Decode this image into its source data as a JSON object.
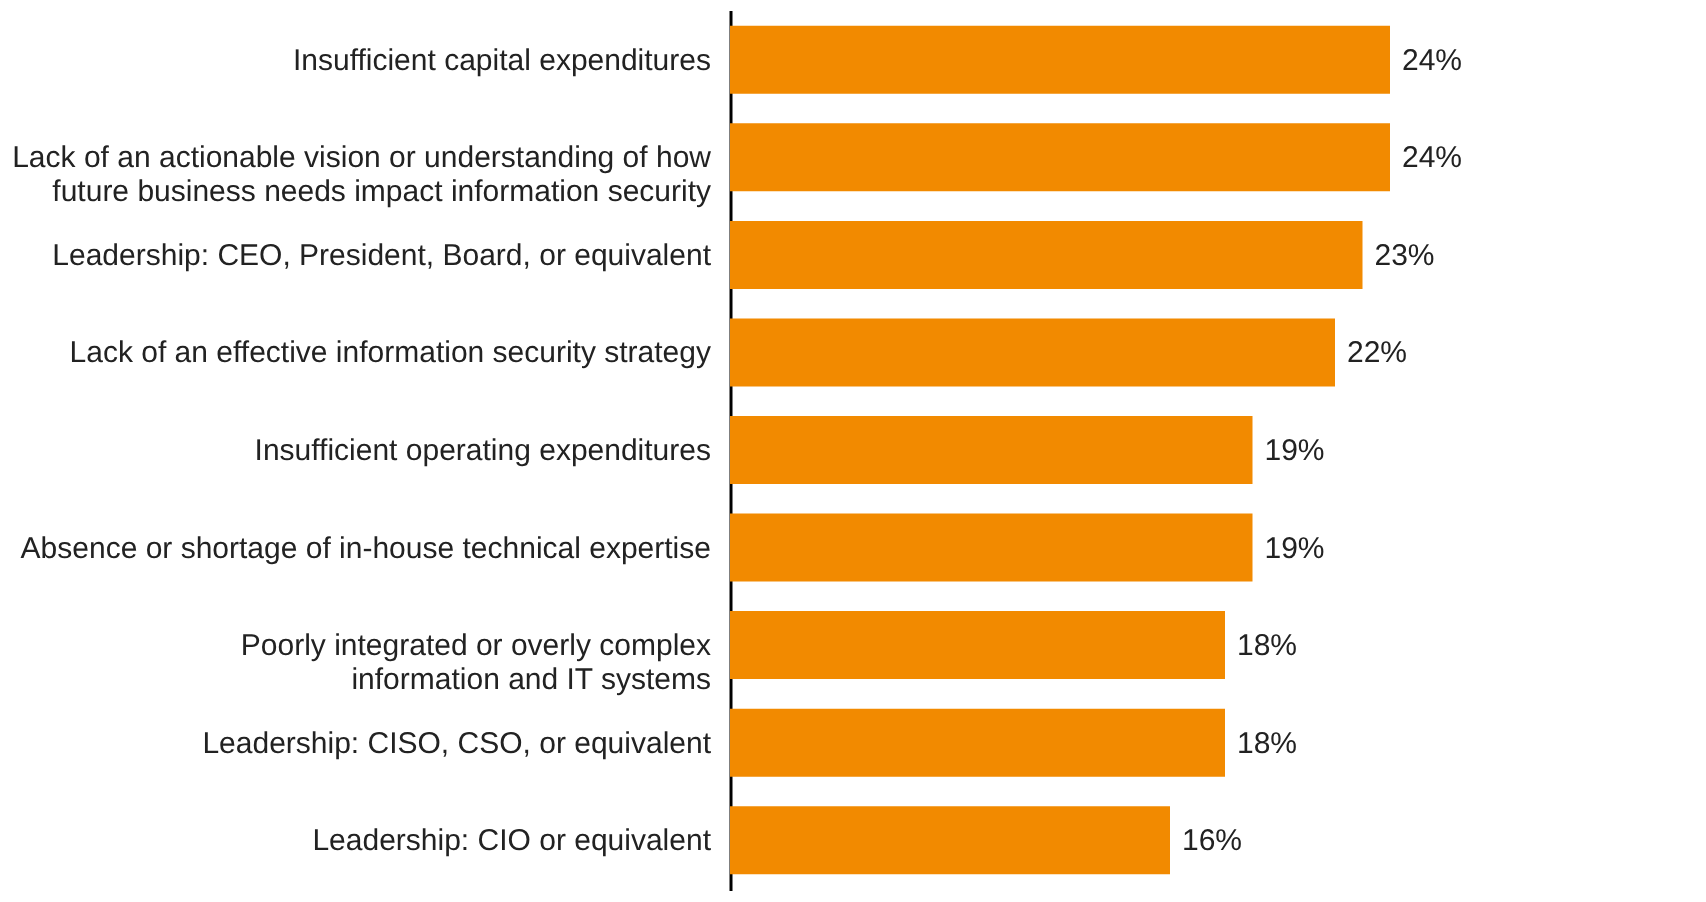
{
  "chart_data": {
    "type": "bar",
    "orientation": "horizontal",
    "categories": [
      "Insufficient capital expenditures",
      "Lack of an actionable vision or understanding of how future business needs impact information security",
      "Leadership: CEO, President, Board, or equivalent",
      "Lack of an effective information security strategy",
      "Insufficient operating expenditures",
      "Absence or shortage of in-house technical expertise",
      "Poorly integrated or overly complex information and IT systems",
      "Leadership: CISO, CSO, or equivalent",
      "Leadership: CIO or equivalent"
    ],
    "values": [
      24,
      24,
      23,
      22,
      19,
      19,
      18,
      18,
      16
    ],
    "color": "#f28a00",
    "value_labels": [
      "24%",
      "24%",
      "23%",
      "22%",
      "19%",
      "19%",
      "18%",
      "18%",
      "16%"
    ],
    "grid": false
  }
}
